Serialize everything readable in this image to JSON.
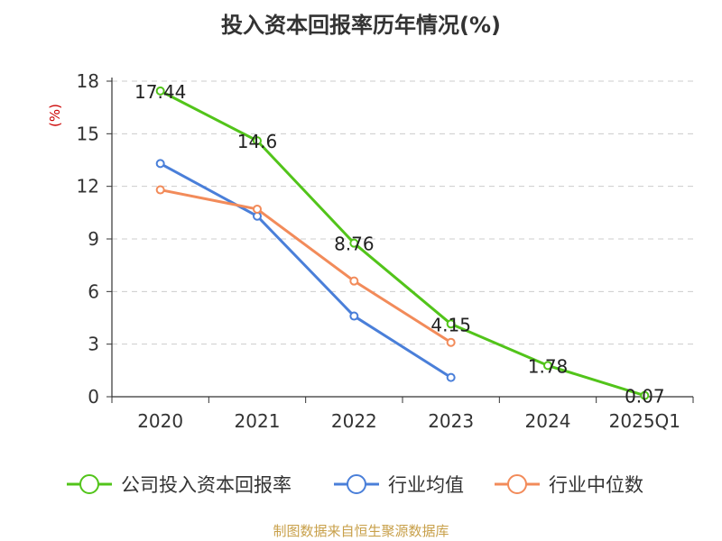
{
  "chart_data": {
    "type": "line",
    "title": "投入资本回报率历年情况(%)",
    "ylabel": "(%)",
    "xlabel": "",
    "categories": [
      "2020",
      "2021",
      "2022",
      "2023",
      "2024",
      "2025Q1"
    ],
    "yticks": [
      "0",
      "3",
      "6",
      "9",
      "12",
      "15",
      "18"
    ],
    "ylim": [
      0,
      18
    ],
    "grid": true,
    "legend_position": "bottom",
    "series": [
      {
        "name": "公司投入资本回报率",
        "color": "#52c41a",
        "values": [
          17.44,
          14.6,
          8.76,
          4.15,
          1.78,
          0.07
        ],
        "labels": [
          "17.44",
          "14.6",
          "8.76",
          "4.15",
          "1.78",
          "0.07"
        ]
      },
      {
        "name": "行业均值",
        "color": "#4a7fd9",
        "values": [
          13.3,
          10.3,
          4.6,
          1.1,
          null,
          null
        ]
      },
      {
        "name": "行业中位数",
        "color": "#f28b5a",
        "values": [
          11.8,
          10.7,
          6.6,
          3.1,
          null,
          null
        ]
      }
    ],
    "ylabel_color": "#cc0000"
  },
  "footer": {
    "source": "制图数据来自恒生聚源数据库",
    "source_color": "#c8a04a"
  }
}
